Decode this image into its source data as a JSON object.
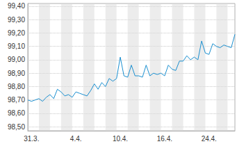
{
  "chart_data": {
    "type": "line",
    "color": "#1a8fd0",
    "grid": true,
    "categories": [
      null,
      "31.3.",
      null,
      null,
      null,
      null,
      null,
      null,
      null,
      null,
      null,
      null,
      null,
      "4.4.",
      null,
      null,
      null,
      null,
      null,
      null,
      null,
      null,
      null,
      null,
      null,
      "10.4.",
      null,
      null,
      null,
      null,
      null,
      null,
      null,
      null,
      null,
      null,
      null,
      "16.4.",
      null,
      null,
      null,
      null,
      null,
      null,
      null,
      null,
      null,
      null,
      null,
      "24.4.",
      null,
      null,
      null,
      null,
      null,
      null,
      null
    ],
    "values": [
      98.7,
      98.69,
      98.7,
      98.71,
      98.69,
      98.72,
      98.74,
      98.71,
      98.78,
      98.76,
      98.73,
      98.74,
      98.72,
      98.76,
      98.75,
      98.74,
      98.73,
      98.77,
      98.82,
      98.78,
      98.83,
      98.8,
      98.86,
      98.84,
      98.86,
      99.02,
      98.88,
      98.87,
      98.96,
      98.88,
      98.88,
      98.87,
      98.96,
      98.88,
      98.9,
      98.89,
      98.9,
      98.88,
      98.96,
      98.93,
      98.92,
      98.99,
      98.99,
      99.03,
      99.0,
      99.02,
      99.0,
      99.14,
      99.05,
      99.04,
      99.12,
      99.1,
      99.09,
      99.11,
      99.1,
      99.09,
      99.19
    ],
    "ylim": [
      98.47,
      99.42
    ],
    "yticks": [
      {
        "value": 98.5,
        "label": "98,50"
      },
      {
        "value": 98.6,
        "label": "98,60"
      },
      {
        "value": 98.7,
        "label": "98,70"
      },
      {
        "value": 98.8,
        "label": "98,80"
      },
      {
        "value": 98.9,
        "label": "98,90"
      },
      {
        "value": 99.0,
        "label": "99,00"
      },
      {
        "value": 99.1,
        "label": "99,10"
      },
      {
        "value": 99.2,
        "label": "99,20"
      },
      {
        "value": 99.3,
        "label": "99,30"
      },
      {
        "value": 99.4,
        "label": "99,40"
      }
    ]
  }
}
